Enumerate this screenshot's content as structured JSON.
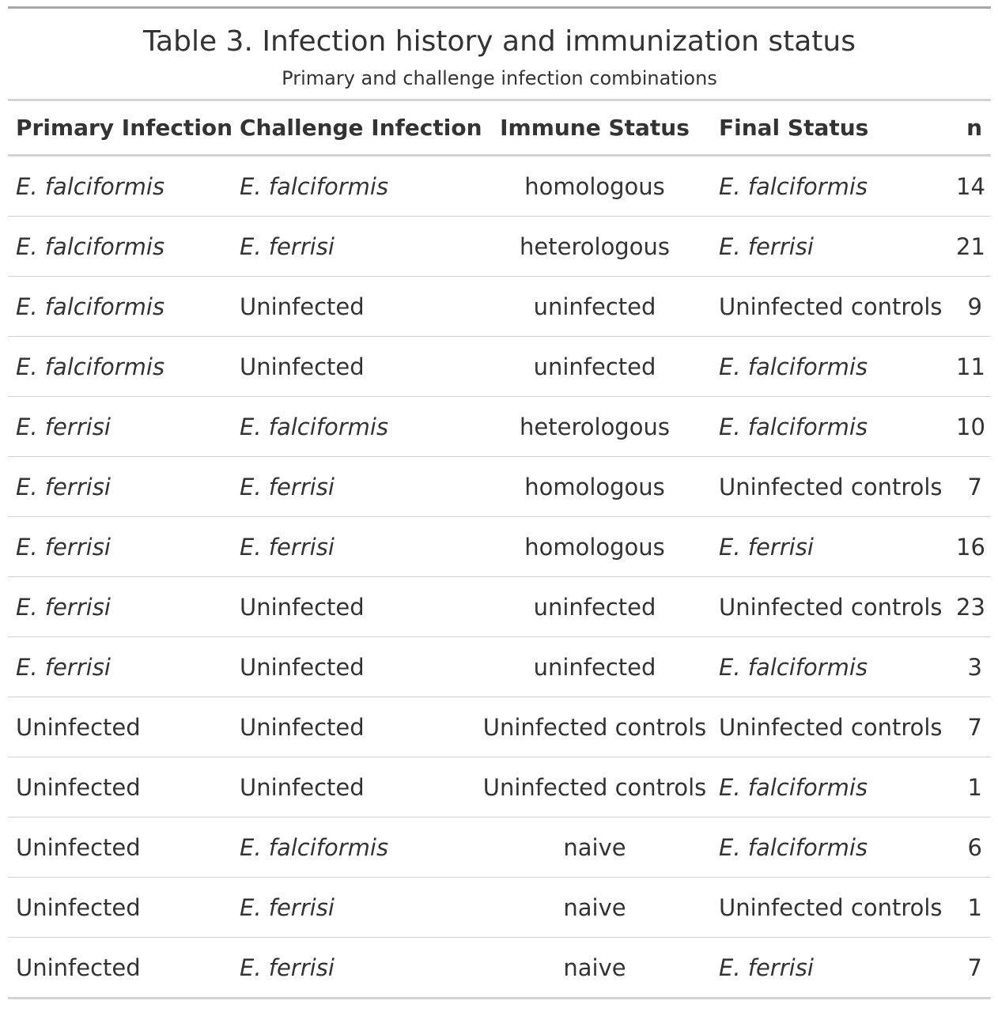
{
  "title": "Table 3. Infection history and immunization status",
  "subtitle": "Primary and challenge infection combinations",
  "columns": [
    "Primary Infection",
    "Challenge Infection",
    "Immune Status",
    "Final Status",
    "n"
  ],
  "rows": [
    {
      "primary": "E. falciformis",
      "challenge": "E. falciformis",
      "immune": "homologous",
      "final": "E. falciformis",
      "n": "14"
    },
    {
      "primary": "E. falciformis",
      "challenge": "E. ferrisi",
      "immune": "heterologous",
      "final": "E. ferrisi",
      "n": "21"
    },
    {
      "primary": "E. falciformis",
      "challenge": "Uninfected",
      "immune": "uninfected",
      "final": "Uninfected controls",
      "n": "9"
    },
    {
      "primary": "E. falciformis",
      "challenge": "Uninfected",
      "immune": "uninfected",
      "final": "E. falciformis",
      "n": "11"
    },
    {
      "primary": "E. ferrisi",
      "challenge": "E. falciformis",
      "immune": "heterologous",
      "final": "E. falciformis",
      "n": "10"
    },
    {
      "primary": "E. ferrisi",
      "challenge": "E. ferrisi",
      "immune": "homologous",
      "final": "Uninfected controls",
      "n": "7"
    },
    {
      "primary": "E. ferrisi",
      "challenge": "E. ferrisi",
      "immune": "homologous",
      "final": "E. ferrisi",
      "n": "16"
    },
    {
      "primary": "E. ferrisi",
      "challenge": "Uninfected",
      "immune": "uninfected",
      "final": "Uninfected controls",
      "n": "23"
    },
    {
      "primary": "E. ferrisi",
      "challenge": "Uninfected",
      "immune": "uninfected",
      "final": "E. falciformis",
      "n": "3"
    },
    {
      "primary": "Uninfected",
      "challenge": "Uninfected",
      "immune": "Uninfected controls",
      "final": "Uninfected controls",
      "n": "7"
    },
    {
      "primary": "Uninfected",
      "challenge": "Uninfected",
      "immune": "Uninfected controls",
      "final": "E. falciformis",
      "n": "1"
    },
    {
      "primary": "Uninfected",
      "challenge": "E. falciformis",
      "immune": "naive",
      "final": "E. falciformis",
      "n": "6"
    },
    {
      "primary": "Uninfected",
      "challenge": "E. ferrisi",
      "immune": "naive",
      "final": "Uninfected controls",
      "n": "1"
    },
    {
      "primary": "Uninfected",
      "challenge": "E. ferrisi",
      "immune": "naive",
      "final": "E. ferrisi",
      "n": "7"
    }
  ]
}
